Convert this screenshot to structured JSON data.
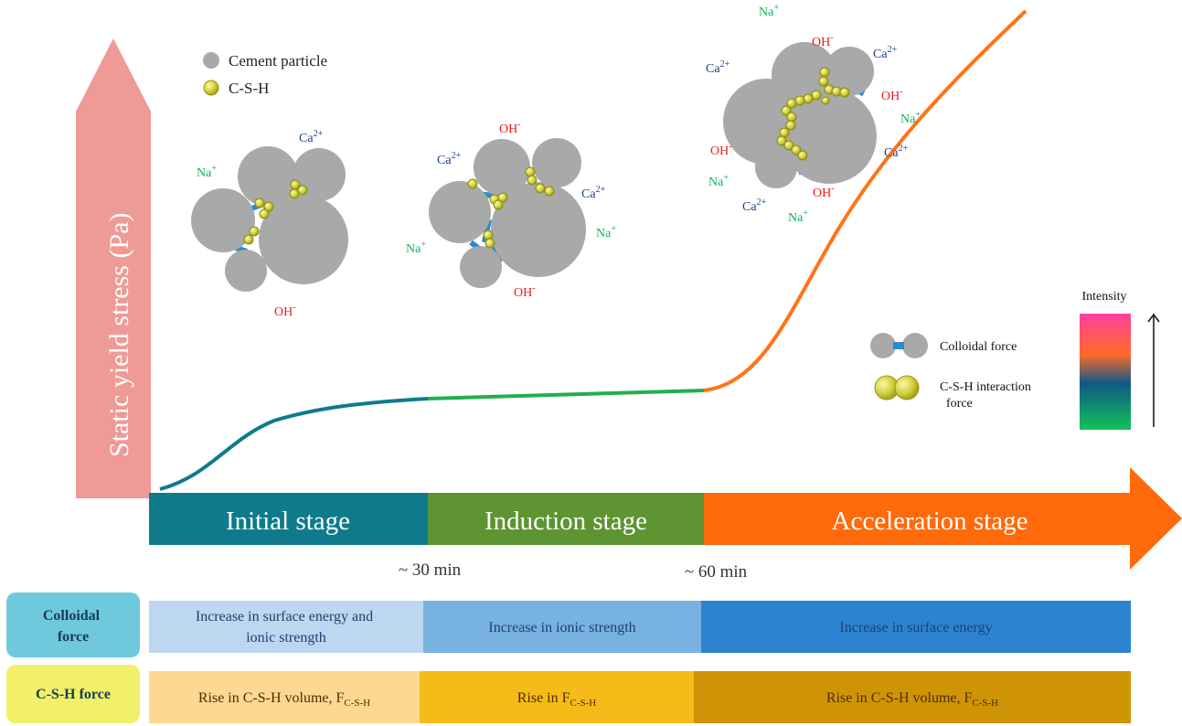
{
  "yaxis": {
    "label": "Static yield stress (Pa)"
  },
  "legend": {
    "cement_particle": "Cement particle",
    "csh": "C-S-H"
  },
  "stages": [
    {
      "label": "Initial stage",
      "color": "#0e7b8d"
    },
    {
      "label": "Induction stage",
      "color": "#5e9431"
    },
    {
      "label": "Acceleration stage",
      "color": "#ff6a0a"
    }
  ],
  "time_marks": [
    "~ 30 min",
    "~ 60 min"
  ],
  "intensity": {
    "title": "Intensity",
    "colloidal_label": "Colloidal force",
    "csh_label_line1": "C-S-H interaction",
    "csh_label_line2": "force"
  },
  "clusters": {
    "c1": {
      "ca": "Ca",
      "ca_sup": "2+",
      "na": "Na",
      "na_sup": "+",
      "oh": "OH",
      "oh_sup": "-"
    },
    "c2": {
      "ca_left": "Ca",
      "ca_left_sup": "2+",
      "oh_top": "OH",
      "oh_top_sup": "-",
      "ca_right": "Ca",
      "ca_right_sup": "2+",
      "na_right": "Na",
      "na_right_sup": "+",
      "na_left": "Na",
      "na_left_sup": "+",
      "oh_bottom": "OH",
      "oh_bottom_sup": "-"
    },
    "c3": {
      "na_top": "Na",
      "na_top_sup": "+",
      "oh_top": "OH",
      "oh_top_sup": "-",
      "ca_topright": "Ca",
      "ca_topright_sup": "2+",
      "ca_left": "Ca",
      "ca_left_sup": "2+",
      "oh_right": "OH",
      "oh_right_sup": "-",
      "na_right": "Na",
      "na_right_sup": "+",
      "oh_left": "OH",
      "oh_left_sup": "-",
      "ca_right": "Ca",
      "ca_right_sup": "2+",
      "na_left": "Na",
      "na_left_sup": "+",
      "oh_bottom": "OH",
      "oh_bottom_sup": "-",
      "ca_bottom": "Ca",
      "ca_bottom_sup": "2+",
      "na_bottom": "Na",
      "na_bottom_sup": "+"
    }
  },
  "table": {
    "rows": [
      {
        "header_line1": "Colloidal",
        "header_line2": "force",
        "header_color": "#6ec9dc",
        "cells": [
          {
            "line1": "Increase in surface energy and",
            "line2": "ionic strength",
            "color": "#bcd7ef"
          },
          {
            "line1": "Increase in ionic strength",
            "line2": "",
            "color": "#78b2e0"
          },
          {
            "line1": "Increase in surface energy",
            "line2": "",
            "color": "#2c84d1"
          }
        ]
      },
      {
        "header_line1": "C-S-H force",
        "header_line2": "",
        "header_color": "#f2f068",
        "cells": [
          {
            "text": "Rise in C-S-H volume, F",
            "sub": "C-S-H",
            "color": "#fcd891"
          },
          {
            "text": "Rise in F",
            "sub": "C-S-H",
            "color": "#f5bb18"
          },
          {
            "text": "Rise in C-S-H volume, F",
            "sub": "C-S-H",
            "color": "#cf9306"
          }
        ]
      }
    ]
  },
  "colors": {
    "y_arrow": "#ee9a96",
    "particle": "#a9a9a9",
    "bond": "#2b8bd3",
    "csh": "#c7c52b",
    "ion_ca": "#1a3e8f",
    "ion_na": "#11b25d",
    "ion_oh": "#ee1c1c",
    "curve_initial": "#0e7b8d",
    "curve_induction": "#21b04b",
    "curve_accel": "#ff7417"
  }
}
